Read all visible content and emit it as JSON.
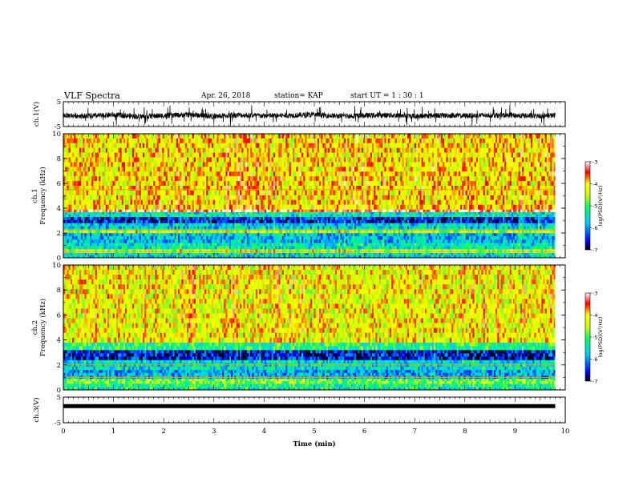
{
  "header": {
    "title": "VLF Spectra",
    "date": "Apr. 26, 2018",
    "station": "station= KAP",
    "start": "start  UT =   1 : 30 : 1"
  },
  "chart_data": [
    {
      "type": "line",
      "panel": "waveform-ch1",
      "ylabel": "ch.1(V)",
      "ylim": [
        -5,
        5
      ],
      "yticks": [
        {
          "v": 5,
          "label": "5"
        },
        {
          "v": -5,
          "label": "-5"
        }
      ],
      "xlim": [
        0,
        10
      ],
      "trace": "noisy waveform roughly between -3 and +1.5 V",
      "envelope_x": [
        0,
        0.5,
        1,
        1.5,
        2,
        2.5,
        3,
        3.5,
        4,
        4.5,
        5,
        5.5,
        6,
        6.5,
        7,
        7.5,
        8,
        8.5,
        9,
        9.5,
        9.8
      ],
      "envelope_y": [
        -0.5,
        -0.8,
        -0.3,
        -1.0,
        -0.6,
        -0.2,
        -0.9,
        -0.4,
        -0.7,
        -0.5,
        -0.3,
        -0.8,
        -0.6,
        -0.4,
        -0.9,
        -0.5,
        -0.7,
        -0.4,
        -0.6,
        -0.8,
        -0.5
      ]
    },
    {
      "type": "heatmap",
      "panel": "spectrogram-ch1",
      "ylabel": "ch.1\nFrequency (kHz)",
      "ylim": [
        0,
        10
      ],
      "xlim": [
        0,
        9.8
      ],
      "yticks": [
        {
          "v": 0,
          "label": "0"
        },
        {
          "v": 2,
          "label": "2"
        },
        {
          "v": 4,
          "label": "4"
        },
        {
          "v": 6,
          "label": "6"
        },
        {
          "v": 8,
          "label": "8"
        },
        {
          "v": 10,
          "label": "10"
        }
      ],
      "colorbar": {
        "label": "log(PSD)(V²/Hz)",
        "min": -7,
        "max": -3,
        "ticks": [
          {
            "v": -3,
            "label": "-3"
          },
          {
            "v": -4,
            "label": "-4"
          },
          {
            "v": -5,
            "label": "-5"
          },
          {
            "v": -6,
            "label": "-6"
          },
          {
            "v": -7,
            "label": "-7"
          }
        ]
      },
      "bands": [
        {
          "f0": 0.0,
          "f1": 0.4,
          "level": -5.6
        },
        {
          "f0": 0.4,
          "f1": 0.7,
          "level": -4.5
        },
        {
          "f0": 0.7,
          "f1": 1.2,
          "level": -5.5
        },
        {
          "f0": 1.2,
          "f1": 2.0,
          "level": -5.8
        },
        {
          "f0": 2.0,
          "f1": 2.3,
          "level": -4.6
        },
        {
          "f0": 2.3,
          "f1": 2.8,
          "level": -5.7
        },
        {
          "f0": 2.8,
          "f1": 3.3,
          "level": -6.5
        },
        {
          "f0": 3.3,
          "f1": 3.7,
          "level": -5.5
        },
        {
          "f0": 3.7,
          "f1": 3.9,
          "level": -3.3
        },
        {
          "f0": 3.9,
          "f1": 10.0,
          "level": -4.1
        }
      ],
      "lines_khz": [
        5.5,
        2.2,
        0.5
      ]
    },
    {
      "type": "heatmap",
      "panel": "spectrogram-ch2",
      "ylabel": "ch.2\nFrequency (kHz)",
      "ylim": [
        0,
        10
      ],
      "xlim": [
        0,
        9.8
      ],
      "yticks": [
        {
          "v": 0,
          "label": "0"
        },
        {
          "v": 2,
          "label": "2"
        },
        {
          "v": 4,
          "label": "4"
        },
        {
          "v": 6,
          "label": "6"
        },
        {
          "v": 8,
          "label": "8"
        },
        {
          "v": 10,
          "label": "10"
        }
      ],
      "colorbar": {
        "label": "log(PSD)(V²/Hz)",
        "min": -7,
        "max": -3,
        "ticks": [
          {
            "v": -3,
            "label": "-3"
          },
          {
            "v": -4,
            "label": "-4"
          },
          {
            "v": -5,
            "label": "-5"
          },
          {
            "v": -6,
            "label": "-6"
          },
          {
            "v": -7,
            "label": "-7"
          }
        ]
      },
      "bands": [
        {
          "f0": 0.0,
          "f1": 0.5,
          "level": -5.3
        },
        {
          "f0": 0.5,
          "f1": 0.9,
          "level": -4.8
        },
        {
          "f0": 0.9,
          "f1": 1.6,
          "level": -5.9
        },
        {
          "f0": 1.6,
          "f1": 2.4,
          "level": -5.6
        },
        {
          "f0": 2.4,
          "f1": 3.2,
          "level": -6.6
        },
        {
          "f0": 3.2,
          "f1": 3.8,
          "level": -5.2
        },
        {
          "f0": 3.8,
          "f1": 10.0,
          "level": -4.2
        }
      ],
      "lines_khz": [
        2.0,
        1.0
      ]
    },
    {
      "type": "line",
      "panel": "waveform-ch3",
      "ylabel": "ch.3(V)",
      "ylim": [
        -5,
        5
      ],
      "yticks": [
        {
          "v": 5,
          "label": "5"
        },
        {
          "v": -5,
          "label": "-5"
        }
      ],
      "xlim": [
        0,
        10
      ],
      "x": [
        0,
        9.8
      ],
      "y": [
        1.5,
        1.5
      ]
    }
  ],
  "xaxis": {
    "label": "Time (min)",
    "range": [
      0,
      10
    ],
    "ticks": [
      "0",
      "1",
      "2",
      "3",
      "4",
      "5",
      "6",
      "7",
      "8",
      "9",
      "10"
    ]
  }
}
